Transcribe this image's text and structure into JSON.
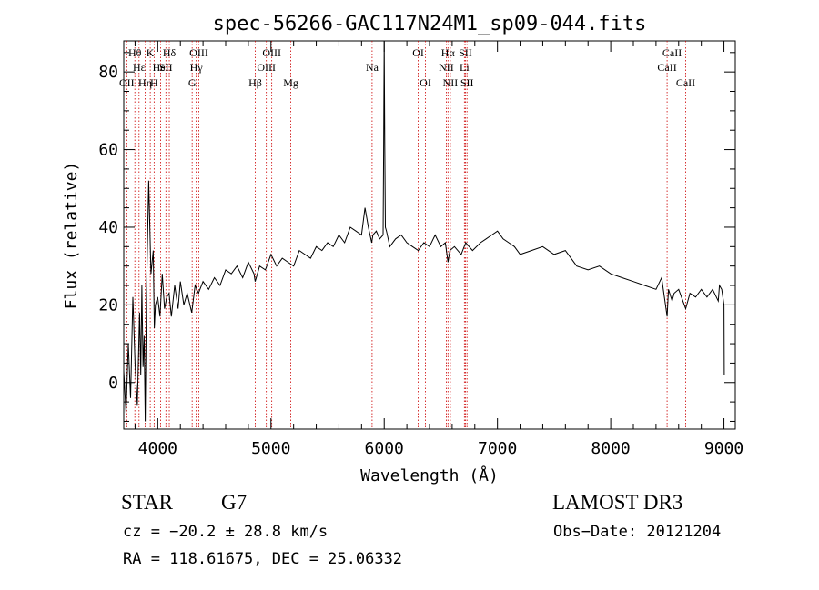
{
  "chart_data": {
    "type": "line",
    "title": "spec-56266-GAC117N24M1_sp09-044.fits",
    "xlabel": "Wavelength (Å)",
    "ylabel": "Flux (relative)",
    "xlim": [
      3700,
      9100
    ],
    "ylim": [
      -12,
      88
    ],
    "xticks": [
      4000,
      5000,
      6000,
      7000,
      8000,
      9000
    ],
    "yticks": [
      0,
      20,
      40,
      60,
      80
    ],
    "line_color": "#000000",
    "marker_color": "#cc0000",
    "series": [
      {
        "x": [
          3700,
          3720,
          3740,
          3760,
          3780,
          3800,
          3820,
          3840,
          3850,
          3860,
          3870,
          3880,
          3890,
          3900,
          3920,
          3940,
          3960,
          3970,
          3980,
          4000,
          4020,
          4040,
          4060,
          4080,
          4100,
          4120,
          4150,
          4180,
          4200,
          4230,
          4260,
          4300,
          4330,
          4360,
          4400,
          4450,
          4500,
          4550,
          4600,
          4650,
          4700,
          4750,
          4800,
          4850,
          4860,
          4900,
          4950,
          5000,
          5050,
          5100,
          5150,
          5200,
          5250,
          5300,
          5350,
          5400,
          5450,
          5500,
          5550,
          5600,
          5650,
          5700,
          5750,
          5800,
          5830,
          5860,
          5890,
          5900,
          5930,
          5960,
          5990,
          5995,
          6000,
          6005,
          6010,
          6020,
          6050,
          6100,
          6150,
          6200,
          6250,
          6300,
          6350,
          6400,
          6450,
          6500,
          6540,
          6563,
          6580,
          6620,
          6680,
          6720,
          6780,
          6850,
          6900,
          6950,
          7000,
          7050,
          7100,
          7150,
          7200,
          7300,
          7400,
          7500,
          7600,
          7700,
          7800,
          7900,
          8000,
          8100,
          8200,
          8300,
          8400,
          8450,
          8498,
          8510,
          8542,
          8560,
          8600,
          8662,
          8700,
          8750,
          8800,
          8850,
          8900,
          8950,
          8960,
          8980,
          9000,
          9003
        ],
        "y": [
          3,
          -8,
          10,
          -4,
          22,
          5,
          -6,
          18,
          2,
          25,
          4,
          12,
          -10,
          22,
          52,
          28,
          34,
          14,
          20,
          22,
          17,
          28,
          19,
          22,
          23,
          17,
          25,
          19,
          26,
          20,
          23,
          18,
          25,
          23,
          26,
          24,
          27,
          25,
          29,
          28,
          30,
          27,
          31,
          28,
          26,
          30,
          29,
          33,
          30,
          32,
          31,
          30,
          34,
          33,
          32,
          35,
          34,
          36,
          35,
          38,
          36,
          40,
          39,
          38,
          45,
          40,
          36,
          38,
          39,
          37,
          38,
          60,
          88,
          62,
          40,
          39,
          35,
          37,
          38,
          36,
          35,
          34,
          36,
          35,
          38,
          35,
          36,
          31,
          34,
          35,
          33,
          36,
          34,
          36,
          37,
          38,
          39,
          37,
          36,
          35,
          33,
          34,
          35,
          33,
          34,
          30,
          29,
          30,
          28,
          27,
          26,
          25,
          24,
          27,
          17,
          24,
          21,
          23,
          24,
          19,
          23,
          22,
          24,
          22,
          24,
          21,
          25,
          24,
          20,
          2
        ]
      }
    ],
    "lines": [
      {
        "wavelength": 3798,
        "row": 1,
        "label": "Hθ"
      },
      {
        "wavelength": 3727,
        "row": 3,
        "label": "OII"
      },
      {
        "wavelength": 3835,
        "row": 2,
        "label": "Hε"
      },
      {
        "wavelength": 3889,
        "row": 3,
        "label": "Hη"
      },
      {
        "wavelength": 3934,
        "row": 1,
        "label": "K"
      },
      {
        "wavelength": 3968,
        "row": 3,
        "label": "H"
      },
      {
        "wavelength": 4026,
        "row": 2,
        "label": "HeI"
      },
      {
        "wavelength": 4072,
        "row": 2,
        "label": "SII"
      },
      {
        "wavelength": 4102,
        "row": 1,
        "label": "Hδ"
      },
      {
        "wavelength": 4304,
        "row": 3,
        "label": "G"
      },
      {
        "wavelength": 4340,
        "row": 2,
        "label": "Hγ"
      },
      {
        "wavelength": 4363,
        "row": 1,
        "label": "OIII"
      },
      {
        "wavelength": 4861,
        "row": 3,
        "label": "Hβ"
      },
      {
        "wavelength": 4959,
        "row": 2,
        "label": "OIII"
      },
      {
        "wavelength": 5007,
        "row": 1,
        "label": "OIII"
      },
      {
        "wavelength": 5175,
        "row": 3,
        "label": "Mg"
      },
      {
        "wavelength": 5893,
        "row": 2,
        "label": "Na"
      },
      {
        "wavelength": 6300,
        "row": 1,
        "label": "OI"
      },
      {
        "wavelength": 6364,
        "row": 3,
        "label": "OI"
      },
      {
        "wavelength": 6548,
        "row": 2,
        "label": "NII"
      },
      {
        "wavelength": 6563,
        "row": 1,
        "label": "Hα"
      },
      {
        "wavelength": 6584,
        "row": 3,
        "label": "NII"
      },
      {
        "wavelength": 6708,
        "row": 2,
        "label": "Li"
      },
      {
        "wavelength": 6717,
        "row": 1,
        "label": "SII"
      },
      {
        "wavelength": 6731,
        "row": 3,
        "label": "SII"
      },
      {
        "wavelength": 8498,
        "row": 2,
        "label": "CaII"
      },
      {
        "wavelength": 8542,
        "row": 1,
        "label": "CaII"
      },
      {
        "wavelength": 8662,
        "row": 3,
        "label": "CaII"
      }
    ]
  },
  "info": {
    "object_class": "STAR",
    "subclass": "G7",
    "survey": "LAMOST DR3",
    "cz": "cz = −20.2 ± 28.8 km/s",
    "obs_date": "Obs−Date: 20121204",
    "coords": "RA = 118.61675, DEC =  25.06332"
  }
}
